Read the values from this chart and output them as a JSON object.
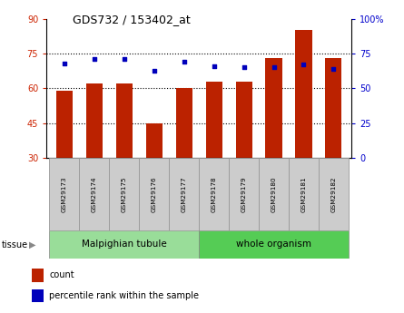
{
  "title": "GDS732 / 153402_at",
  "samples": [
    "GSM29173",
    "GSM29174",
    "GSM29175",
    "GSM29176",
    "GSM29177",
    "GSM29178",
    "GSM29179",
    "GSM29180",
    "GSM29181",
    "GSM29182"
  ],
  "counts": [
    59,
    62,
    62,
    45,
    60,
    63,
    63,
    73,
    85,
    73
  ],
  "percentiles": [
    68,
    71,
    71,
    63,
    69,
    66,
    65,
    65,
    67,
    64
  ],
  "ylim_left": [
    30,
    90
  ],
  "ylim_right": [
    0,
    100
  ],
  "yticks_left": [
    30,
    45,
    60,
    75,
    90
  ],
  "yticks_right": [
    0,
    25,
    50,
    75,
    100
  ],
  "bar_color": "#bb2200",
  "dot_color": "#0000bb",
  "bar_width": 0.55,
  "grid_color": "black",
  "tissue_groups": [
    {
      "label": "Malpighian tubule",
      "samples": [
        "GSM29173",
        "GSM29174",
        "GSM29175",
        "GSM29176",
        "GSM29177"
      ],
      "color": "#99dd99"
    },
    {
      "label": "whole organism",
      "samples": [
        "GSM29178",
        "GSM29179",
        "GSM29180",
        "GSM29181",
        "GSM29182"
      ],
      "color": "#55cc55"
    }
  ],
  "legend_items": [
    {
      "label": "count",
      "color": "#bb2200"
    },
    {
      "label": "percentile rank within the sample",
      "color": "#0000bb"
    }
  ],
  "tissue_label": "tissue",
  "bg_color": "#ffffff",
  "plot_bg": "#ffffff",
  "tick_color_left": "#cc2200",
  "tick_color_right": "#0000cc",
  "sample_box_color": "#cccccc",
  "sample_box_edge": "#999999"
}
